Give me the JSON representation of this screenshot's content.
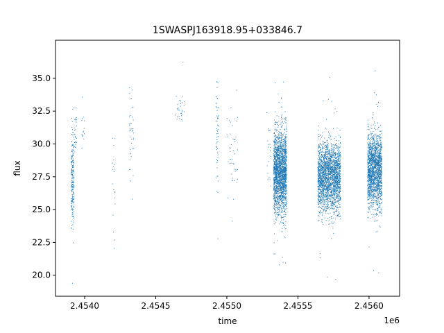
{
  "chart_data": {
    "type": "scatter",
    "title": "1SWASPJ163918.95+033846.7",
    "xlabel": "time",
    "ylabel": "flux",
    "x_offset_label": "1e6",
    "xlim": [
      2453795,
      2456215
    ],
    "ylim": [
      18.4,
      37.9
    ],
    "xticks": [
      2454000,
      2454500,
      2455000,
      2455500,
      2456000
    ],
    "xtick_labels": [
      "2.4540",
      "2.4545",
      "2.4550",
      "2.4555",
      "2.4560"
    ],
    "yticks": [
      20.0,
      22.5,
      25.0,
      27.5,
      30.0,
      32.5,
      35.0
    ],
    "ytick_labels": [
      "20.0",
      "22.5",
      "25.0",
      "27.5",
      "30.0",
      "32.5",
      "35.0"
    ],
    "grid": false,
    "marker_color": "#1f77b4",
    "season_clusters": [
      {
        "x_min": 2453905,
        "x_max": 2453925,
        "y_center": 27.2,
        "y_spread": 1.8,
        "n": 220
      },
      {
        "x_min": 2453925,
        "x_max": 2453945,
        "y_center": 31.0,
        "y_spread": 1.0,
        "n": 30
      },
      {
        "x_min": 2453980,
        "x_max": 2454000,
        "y_center": 31.0,
        "y_spread": 0.8,
        "n": 15
      },
      {
        "x_min": 2454195,
        "x_max": 2454215,
        "y_center": 27.0,
        "y_spread": 2.2,
        "n": 20
      },
      {
        "x_min": 2454315,
        "x_max": 2454345,
        "y_center": 30.8,
        "y_spread": 1.5,
        "n": 40
      },
      {
        "x_min": 2454640,
        "x_max": 2454700,
        "y_center": 32.6,
        "y_spread": 0.6,
        "n": 30
      },
      {
        "x_min": 2454925,
        "x_max": 2454940,
        "y_center": 30.5,
        "y_spread": 2.0,
        "n": 60
      },
      {
        "x_min": 2455000,
        "x_max": 2455080,
        "y_center": 29.2,
        "y_spread": 2.0,
        "n": 45
      },
      {
        "x_min": 2455280,
        "x_max": 2455310,
        "y_center": 29.5,
        "y_spread": 1.5,
        "n": 20
      },
      {
        "x_min": 2455330,
        "x_max": 2455420,
        "y_center": 27.8,
        "y_spread": 1.6,
        "n": 2200
      },
      {
        "x_min": 2455640,
        "x_max": 2455800,
        "y_center": 27.5,
        "y_spread": 1.3,
        "n": 2400
      },
      {
        "x_min": 2455990,
        "x_max": 2456090,
        "y_center": 28.0,
        "y_spread": 1.4,
        "n": 1900
      }
    ]
  }
}
